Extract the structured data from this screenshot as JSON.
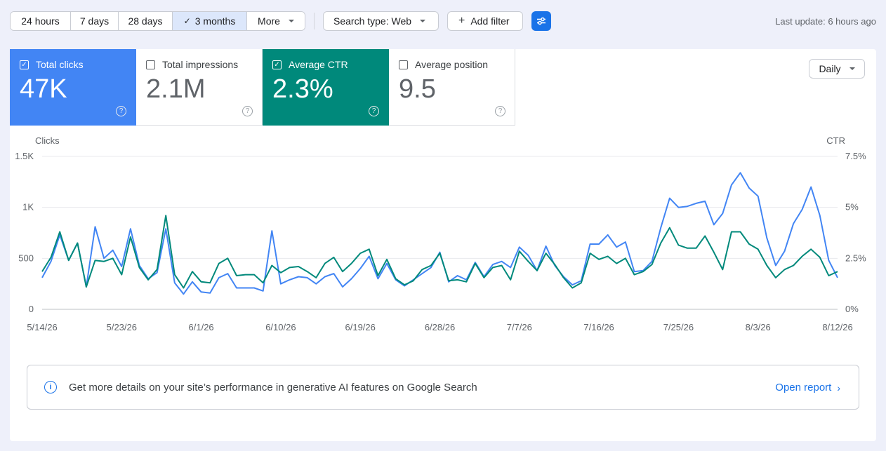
{
  "toolbar": {
    "ranges": [
      {
        "label": "24 hours",
        "active": false
      },
      {
        "label": "7 days",
        "active": false
      },
      {
        "label": "28 days",
        "active": false
      },
      {
        "label": "3 months",
        "active": true
      },
      {
        "label": "More",
        "active": false
      }
    ],
    "search_type": "Search type: Web",
    "add_filter": "Add filter",
    "last_update": "Last update: 6 hours ago"
  },
  "metrics": [
    {
      "label": "Total clicks",
      "value": "47K",
      "checked": true,
      "color": "#4285f4"
    },
    {
      "label": "Total impressions",
      "value": "2.1M",
      "checked": false,
      "color": "#5e35b1"
    },
    {
      "label": "Average CTR",
      "value": "2.3%",
      "checked": true,
      "color": "#00897b"
    },
    {
      "label": "Average position",
      "value": "9.5",
      "checked": false,
      "color": "#e8710a"
    }
  ],
  "granularity": "Daily",
  "chart_data": {
    "type": "line",
    "y_left_label": "Clicks",
    "y_right_label": "CTR",
    "y_left_ticks": [
      "0",
      "500",
      "1K",
      "1.5K"
    ],
    "y_right_ticks": [
      "0%",
      "2.5%",
      "5%",
      "7.5%"
    ],
    "ylim_left": [
      0,
      1500
    ],
    "ylim_right": [
      0,
      7.5
    ],
    "x_ticks": [
      {
        "label": "5/14/26",
        "index": 0
      },
      {
        "label": "5/23/26",
        "index": 9
      },
      {
        "label": "6/1/26",
        "index": 18
      },
      {
        "label": "6/10/26",
        "index": 27
      },
      {
        "label": "6/19/26",
        "index": 36
      },
      {
        "label": "6/28/26",
        "index": 45
      },
      {
        "label": "7/7/26",
        "index": 54
      },
      {
        "label": "7/16/26",
        "index": 63
      },
      {
        "label": "7/25/26",
        "index": 72
      },
      {
        "label": "8/3/26",
        "index": 81
      },
      {
        "label": "8/12/26",
        "index": 90
      }
    ],
    "series": [
      {
        "name": "Clicks",
        "color": "#4285f4",
        "axis": "left",
        "values": [
          310,
          470,
          730,
          480,
          650,
          220,
          810,
          500,
          580,
          420,
          790,
          430,
          300,
          360,
          790,
          260,
          150,
          270,
          170,
          160,
          310,
          350,
          210,
          210,
          210,
          180,
          770,
          250,
          290,
          320,
          310,
          250,
          320,
          350,
          220,
          300,
          400,
          520,
          300,
          450,
          290,
          230,
          290,
          350,
          410,
          560,
          270,
          330,
          290,
          460,
          320,
          440,
          470,
          410,
          610,
          530,
          380,
          620,
          430,
          320,
          240,
          280,
          640,
          640,
          730,
          610,
          660,
          370,
          380,
          470,
          800,
          1090,
          1000,
          1010,
          1040,
          1060,
          830,
          940,
          1220,
          1340,
          1190,
          1110,
          700,
          430,
          570,
          840,
          980,
          1200,
          920,
          480,
          310
        ]
      },
      {
        "name": "CTR",
        "color": "#00897b",
        "axis": "right",
        "values": [
          1.85,
          2.55,
          3.8,
          2.4,
          3.25,
          1.1,
          2.4,
          2.35,
          2.5,
          1.7,
          3.55,
          2.05,
          1.45,
          1.95,
          4.6,
          1.7,
          1.05,
          1.85,
          1.35,
          1.3,
          2.25,
          2.5,
          1.65,
          1.7,
          1.7,
          1.3,
          2.15,
          1.8,
          2.05,
          2.1,
          1.85,
          1.55,
          2.25,
          2.55,
          1.85,
          2.25,
          2.75,
          2.95,
          1.65,
          2.45,
          1.5,
          1.2,
          1.4,
          1.95,
          2.15,
          2.75,
          1.4,
          1.45,
          1.35,
          2.25,
          1.55,
          2.05,
          2.15,
          1.45,
          2.85,
          2.35,
          1.9,
          2.75,
          2.2,
          1.55,
          1.05,
          1.3,
          2.75,
          2.45,
          2.6,
          2.25,
          2.5,
          1.7,
          1.85,
          2.2,
          3.25,
          4.0,
          3.15,
          3.0,
          3.0,
          3.6,
          2.8,
          1.95,
          3.8,
          3.8,
          3.2,
          2.95,
          2.15,
          1.55,
          1.95,
          2.15,
          2.6,
          2.95,
          2.55,
          1.65,
          1.85
        ]
      }
    ]
  },
  "banner": {
    "text": "Get more details on your site’s performance in generative AI features on Google Search",
    "link": "Open report"
  }
}
